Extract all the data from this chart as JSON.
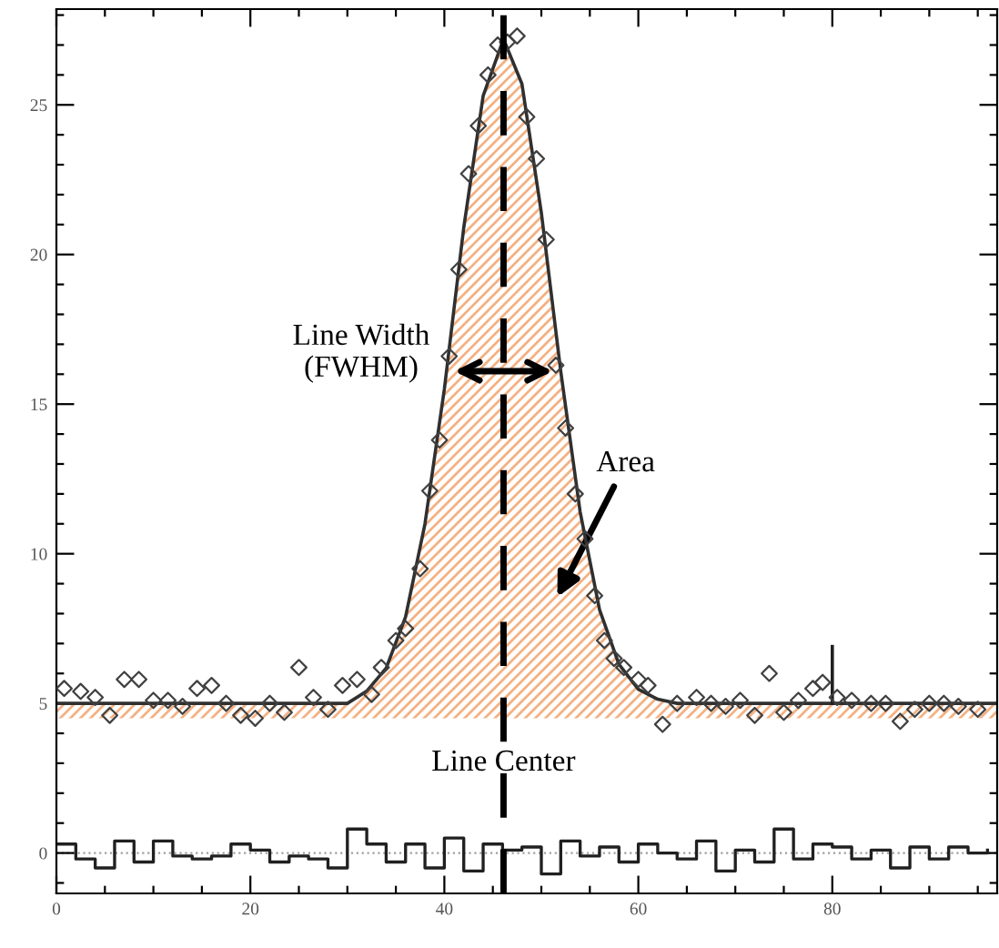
{
  "chart_data": {
    "type": "line",
    "xlim": [
      0,
      97
    ],
    "ylim": [
      -1.35,
      28.2
    ],
    "xticks": [
      {
        "value": 0,
        "label": "0"
      },
      {
        "value": 5,
        "label": null
      },
      {
        "value": 10,
        "label": null
      },
      {
        "value": 15,
        "label": null
      },
      {
        "value": 20,
        "label": "20"
      },
      {
        "value": 25,
        "label": null
      },
      {
        "value": 30,
        "label": null
      },
      {
        "value": 35,
        "label": null
      },
      {
        "value": 40,
        "label": "40"
      },
      {
        "value": 45,
        "label": null
      },
      {
        "value": 50,
        "label": null
      },
      {
        "value": 55,
        "label": null
      },
      {
        "value": 60,
        "label": "60"
      },
      {
        "value": 65,
        "label": null
      },
      {
        "value": 70,
        "label": null
      },
      {
        "value": 75,
        "label": null
      },
      {
        "value": 80,
        "label": "80"
      },
      {
        "value": 85,
        "label": null
      },
      {
        "value": 90,
        "label": null
      },
      {
        "value": 95,
        "label": null
      }
    ],
    "yticks": [
      {
        "value": -1,
        "label": null
      },
      {
        "value": 0,
        "label": "0"
      },
      {
        "value": 1,
        "label": null
      },
      {
        "value": 2,
        "label": null
      },
      {
        "value": 3,
        "label": null
      },
      {
        "value": 4,
        "label": null
      },
      {
        "value": 5,
        "label": "5"
      },
      {
        "value": 6,
        "label": null
      },
      {
        "value": 7,
        "label": null
      },
      {
        "value": 8,
        "label": null
      },
      {
        "value": 9,
        "label": null
      },
      {
        "value": 10,
        "label": "10"
      },
      {
        "value": 11,
        "label": null
      },
      {
        "value": 12,
        "label": null
      },
      {
        "value": 13,
        "label": null
      },
      {
        "value": 14,
        "label": null
      },
      {
        "value": 15,
        "label": "15"
      },
      {
        "value": 16,
        "label": null
      },
      {
        "value": 17,
        "label": null
      },
      {
        "value": 18,
        "label": null
      },
      {
        "value": 19,
        "label": null
      },
      {
        "value": 20,
        "label": "20"
      },
      {
        "value": 21,
        "label": null
      },
      {
        "value": 22,
        "label": null
      },
      {
        "value": 23,
        "label": null
      },
      {
        "value": 24,
        "label": null
      },
      {
        "value": 25,
        "label": "25"
      },
      {
        "value": 26,
        "label": null
      },
      {
        "value": 27,
        "label": null
      },
      {
        "value": 28,
        "label": null
      }
    ],
    "series": [
      {
        "type": "scatter",
        "color": "#404040",
        "marker": "diamond",
        "x": [
          0.8,
          2.5,
          4,
          5.5,
          7,
          8.5,
          10,
          11.5,
          13,
          14.5,
          16,
          17.5,
          19,
          20.5,
          22,
          23.5,
          25,
          26.5,
          28,
          29.5,
          31,
          32.5,
          33.5,
          35,
          36,
          37.5,
          38.5,
          39.5,
          40.5,
          41.5,
          42.5,
          43.5,
          44.5,
          45.5,
          46.5,
          47.5,
          48.5,
          49.5,
          50.5,
          51.5,
          52.5,
          53.5,
          54.5,
          55.5,
          56.5,
          57.5,
          58.5,
          60,
          61,
          62.5,
          64,
          66,
          67.5,
          69,
          70.5,
          72,
          73.5,
          75,
          76.5,
          78,
          79,
          80.5,
          82,
          84,
          85.5,
          87,
          88.5,
          90,
          91.5,
          93,
          95
        ],
        "values": [
          5.5,
          5.4,
          5.2,
          4.6,
          5.8,
          5.8,
          5.1,
          5.1,
          4.9,
          5.5,
          5.6,
          5.0,
          4.6,
          4.5,
          5.0,
          4.7,
          6.2,
          5.2,
          4.8,
          5.6,
          5.8,
          5.3,
          6.2,
          7.1,
          7.5,
          9.5,
          12.1,
          13.8,
          16.6,
          19.5,
          22.7,
          24.3,
          26.0,
          27.0,
          27.1,
          27.3,
          24.6,
          23.2,
          20.5,
          16.3,
          14.2,
          12.0,
          10.5,
          8.6,
          7.1,
          6.5,
          6.2,
          5.8,
          5.6,
          4.3,
          5.0,
          5.2,
          5.0,
          4.9,
          5.1,
          4.6,
          6.0,
          4.7,
          5.1,
          5.5,
          5.7,
          5.2,
          5.1,
          5.0,
          5.0,
          4.4,
          4.8,
          5.0,
          5.0,
          4.9,
          4.8
        ]
      },
      {
        "color": "#303030",
        "x": [
          0,
          10,
          20,
          30,
          32,
          34,
          36,
          38,
          40,
          42,
          44,
          46.1,
          48,
          50,
          52,
          54,
          56,
          58,
          60,
          62,
          64,
          70,
          80,
          97
        ],
        "values": [
          5.0,
          5.0,
          5.0,
          5.0,
          5.41,
          6.18,
          7.89,
          11.0,
          15.5,
          20.9,
          25.3,
          27.2,
          25.7,
          21.4,
          16.1,
          11.4,
          8.13,
          6.31,
          5.47,
          5.14,
          5.0,
          5.0,
          5.0,
          5.0
        ],
        "lower": [
          4.5,
          4.5,
          4.5,
          4.5,
          4.5,
          4.5,
          4.5,
          4.5,
          4.5,
          4.5,
          4.5,
          4.5,
          4.5,
          4.5,
          4.5,
          4.5,
          4.5,
          4.5,
          4.5,
          4.5,
          4.5,
          4.5,
          4.5,
          4.5
        ],
        "upper": [
          5.0,
          5.0,
          5.0,
          5.0,
          5.41,
          6.18,
          7.89,
          11.0,
          15.5,
          20.9,
          25.3,
          27.2,
          25.7,
          21.4,
          16.1,
          11.4,
          8.13,
          6.31,
          5.47,
          5.14,
          5.0,
          5.0,
          5.0,
          5.0
        ]
      },
      {
        "color": "#202020",
        "x": [
          80,
          80
        ],
        "values": [
          5.0,
          6.9
        ]
      },
      {
        "type": "step",
        "color": "#202020",
        "x": [
          0,
          2,
          4,
          6,
          8,
          10,
          12,
          14,
          16,
          18,
          20,
          22,
          24,
          26,
          28,
          30,
          32,
          34,
          36,
          38,
          40,
          42,
          44,
          46,
          48,
          50,
          52,
          54,
          56,
          58,
          60,
          62,
          64,
          66,
          68,
          70,
          72,
          74,
          76,
          78,
          80,
          82,
          84,
          86,
          88,
          90,
          92,
          94,
          96
        ],
        "values": [
          0.3,
          -0.2,
          -0.5,
          0.4,
          -0.3,
          0.4,
          -0.1,
          -0.2,
          -0.1,
          0.3,
          0.1,
          -0.3,
          -0.1,
          -0.2,
          -0.5,
          0.8,
          0.3,
          -0.3,
          0.3,
          -0.5,
          0.5,
          -0.6,
          0.3,
          0.1,
          0.2,
          -0.7,
          0.4,
          -0.1,
          0.2,
          -0.3,
          0.3,
          0.0,
          -0.2,
          0.4,
          -0.6,
          0.1,
          -0.3,
          0.8,
          -0.2,
          0.3,
          0.2,
          -0.2,
          0.1,
          -0.5,
          0.2,
          -0.2,
          0.2,
          0.0,
          0.1
        ]
      }
    ],
    "ref_lines": [
      {
        "axis": "y",
        "value": 0,
        "color": "#a0a0a0",
        "line_style": "dotted"
      },
      {
        "axis": "x",
        "value": 46.1,
        "label": "Line Center",
        "color": "#000000",
        "line_style": "dashed"
      }
    ],
    "annotations": [
      {
        "text": "Line Width\n(FWHM)",
        "x": 40.5,
        "y": 16.1
      },
      "Area"
    ],
    "grid": false,
    "legend": false
  }
}
